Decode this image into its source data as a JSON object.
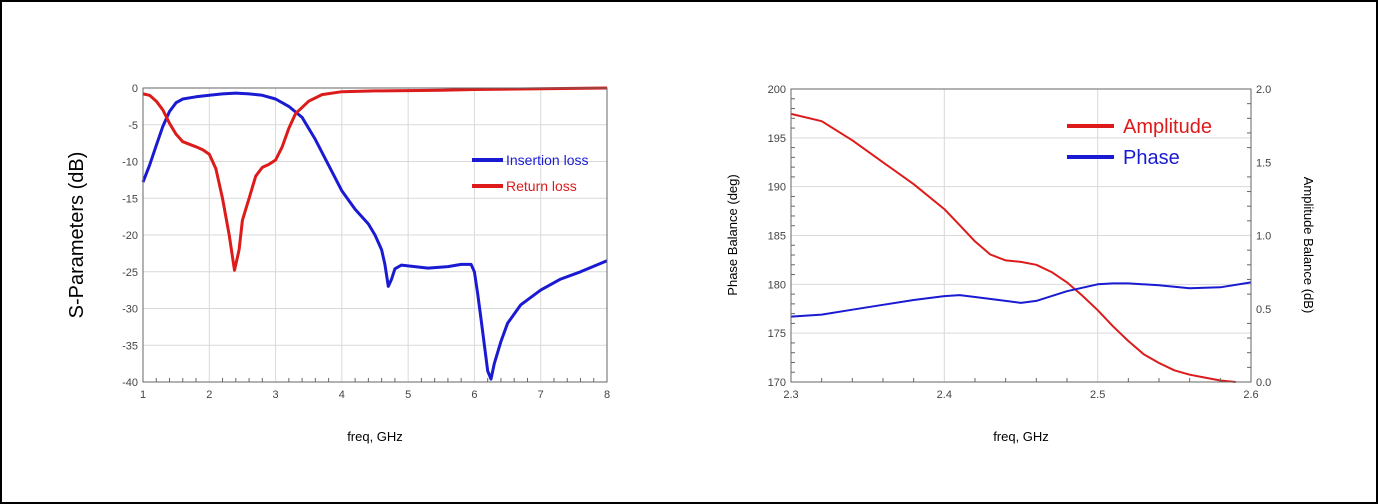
{
  "chart_data": [
    {
      "type": "line",
      "ylabel": "S-Parameters (dB)",
      "xlabel": "freq, GHz",
      "xlim": [
        1,
        8
      ],
      "ylim": [
        -40,
        0
      ],
      "x_ticks": [
        1,
        2,
        3,
        4,
        5,
        6,
        7,
        8
      ],
      "y_ticks": [
        0,
        -5,
        -10,
        -15,
        -20,
        -25,
        -30,
        -35,
        -40
      ],
      "grid": true,
      "legend_position": "right",
      "series": [
        {
          "name": "Insertion loss",
          "color": "#1a1ad2",
          "points": [
            [
              1.0,
              -12.8
            ],
            [
              1.1,
              -10.5
            ],
            [
              1.2,
              -7.8
            ],
            [
              1.3,
              -5.2
            ],
            [
              1.4,
              -3.2
            ],
            [
              1.5,
              -2.0
            ],
            [
              1.6,
              -1.5
            ],
            [
              1.8,
              -1.2
            ],
            [
              2.0,
              -1.0
            ],
            [
              2.2,
              -0.8
            ],
            [
              2.4,
              -0.7
            ],
            [
              2.6,
              -0.8
            ],
            [
              2.8,
              -1.0
            ],
            [
              3.0,
              -1.5
            ],
            [
              3.2,
              -2.5
            ],
            [
              3.4,
              -4.0
            ],
            [
              3.6,
              -7.0
            ],
            [
              3.8,
              -10.5
            ],
            [
              4.0,
              -14.0
            ],
            [
              4.2,
              -16.5
            ],
            [
              4.4,
              -18.5
            ],
            [
              4.5,
              -20.0
            ],
            [
              4.6,
              -22.0
            ],
            [
              4.65,
              -24.0
            ],
            [
              4.7,
              -27.0
            ],
            [
              4.75,
              -26.0
            ],
            [
              4.8,
              -24.6
            ],
            [
              4.9,
              -24.1
            ],
            [
              5.0,
              -24.2
            ],
            [
              5.3,
              -24.5
            ],
            [
              5.6,
              -24.3
            ],
            [
              5.8,
              -24.0
            ],
            [
              5.95,
              -24.0
            ],
            [
              6.0,
              -25.0
            ],
            [
              6.05,
              -28.0
            ],
            [
              6.1,
              -31.5
            ],
            [
              6.15,
              -35.0
            ],
            [
              6.2,
              -38.5
            ],
            [
              6.25,
              -39.6
            ],
            [
              6.3,
              -37.5
            ],
            [
              6.4,
              -34.5
            ],
            [
              6.5,
              -32.0
            ],
            [
              6.7,
              -29.5
            ],
            [
              7.0,
              -27.5
            ],
            [
              7.3,
              -26.0
            ],
            [
              7.6,
              -25.0
            ],
            [
              8.0,
              -23.5
            ]
          ]
        },
        {
          "name": "Return loss",
          "color": "#dd1b1b",
          "points": [
            [
              1.0,
              -0.8
            ],
            [
              1.1,
              -1.0
            ],
            [
              1.2,
              -1.8
            ],
            [
              1.3,
              -3.0
            ],
            [
              1.4,
              -4.8
            ],
            [
              1.5,
              -6.3
            ],
            [
              1.6,
              -7.3
            ],
            [
              1.8,
              -8.0
            ],
            [
              1.9,
              -8.4
            ],
            [
              2.0,
              -9.0
            ],
            [
              2.1,
              -11.0
            ],
            [
              2.2,
              -15.0
            ],
            [
              2.3,
              -20.0
            ],
            [
              2.38,
              -24.8
            ],
            [
              2.45,
              -22.0
            ],
            [
              2.5,
              -18.0
            ],
            [
              2.6,
              -15.0
            ],
            [
              2.7,
              -12.0
            ],
            [
              2.8,
              -10.8
            ],
            [
              2.9,
              -10.4
            ],
            [
              3.0,
              -9.8
            ],
            [
              3.1,
              -8.0
            ],
            [
              3.2,
              -5.5
            ],
            [
              3.3,
              -3.5
            ],
            [
              3.5,
              -1.8
            ],
            [
              3.7,
              -0.9
            ],
            [
              4.0,
              -0.5
            ],
            [
              4.5,
              -0.4
            ],
            [
              5.0,
              -0.35
            ],
            [
              5.5,
              -0.3
            ],
            [
              6.0,
              -0.2
            ],
            [
              7.0,
              -0.1
            ],
            [
              8.0,
              0.0
            ]
          ]
        }
      ]
    },
    {
      "type": "line",
      "ylabel": "Phase Balance (deg)",
      "y2label": "Amplitude Balance (dB)",
      "xlabel": "freq, GHz",
      "xlim": [
        2.3,
        2.6
      ],
      "ylim": [
        170,
        200
      ],
      "y2lim": [
        0.0,
        2.0
      ],
      "x_ticks": [
        "2.3",
        "2.4",
        "2.5",
        "2.6"
      ],
      "y_ticks": [
        170,
        175,
        180,
        185,
        190,
        195,
        200
      ],
      "y2_ticks": [
        "0.0",
        "0.5",
        "1.0",
        "1.5",
        "2.0"
      ],
      "grid": true,
      "legend_position": "top-right",
      "series": [
        {
          "name": "Amplitude",
          "axis": "right",
          "color": "#dd1b1b",
          "points": [
            [
              2.3,
              1.83
            ],
            [
              2.32,
              1.78
            ],
            [
              2.34,
              1.65
            ],
            [
              2.36,
              1.5
            ],
            [
              2.38,
              1.35
            ],
            [
              2.4,
              1.18
            ],
            [
              2.41,
              1.07
            ],
            [
              2.42,
              0.96
            ],
            [
              2.43,
              0.87
            ],
            [
              2.44,
              0.83
            ],
            [
              2.45,
              0.82
            ],
            [
              2.46,
              0.8
            ],
            [
              2.47,
              0.75
            ],
            [
              2.48,
              0.68
            ],
            [
              2.49,
              0.59
            ],
            [
              2.5,
              0.49
            ],
            [
              2.51,
              0.38
            ],
            [
              2.52,
              0.28
            ],
            [
              2.53,
              0.19
            ],
            [
              2.54,
              0.13
            ],
            [
              2.55,
              0.08
            ],
            [
              2.56,
              0.05
            ],
            [
              2.57,
              0.03
            ],
            [
              2.58,
              0.01
            ],
            [
              2.59,
              0.0
            ]
          ]
        },
        {
          "name": "Phase",
          "axis": "left",
          "color": "#1a1ad2",
          "points": [
            [
              2.3,
              176.7
            ],
            [
              2.32,
              176.9
            ],
            [
              2.34,
              177.4
            ],
            [
              2.36,
              177.9
            ],
            [
              2.38,
              178.4
            ],
            [
              2.4,
              178.8
            ],
            [
              2.41,
              178.9
            ],
            [
              2.42,
              178.7
            ],
            [
              2.44,
              178.3
            ],
            [
              2.45,
              178.1
            ],
            [
              2.46,
              178.3
            ],
            [
              2.48,
              179.3
            ],
            [
              2.5,
              180.0
            ],
            [
              2.51,
              180.1
            ],
            [
              2.52,
              180.1
            ],
            [
              2.54,
              179.9
            ],
            [
              2.56,
              179.6
            ],
            [
              2.58,
              179.7
            ],
            [
              2.6,
              180.2
            ]
          ]
        }
      ]
    }
  ]
}
